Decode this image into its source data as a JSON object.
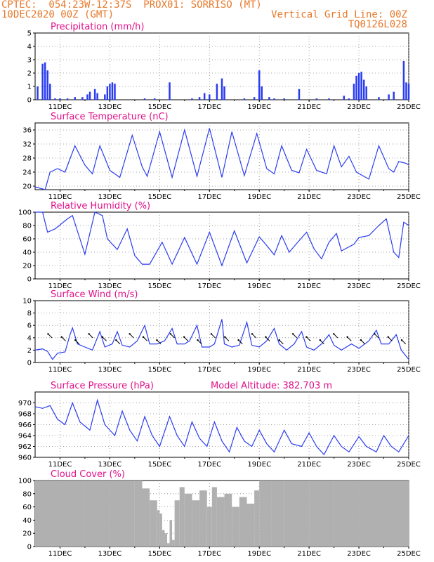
{
  "header": {
    "line1_left": "CPTEC:  054:23W-12:37S  PROX01: SORRISO (MT)",
    "line2_left": "10DEC2020 00Z (GMT)",
    "line2_right": "Vertical Grid Line: 00Z",
    "line3_right": "TQ0126L028"
  },
  "colors": {
    "header": "#e8782a",
    "panel_title": "#e0108a",
    "series": "#2a3cf0",
    "cloud": "#b0b0b0"
  },
  "chart_data": [
    {
      "type": "bar",
      "title": "Precipitation (mm/h)",
      "ylim": [
        0,
        5
      ],
      "yticks": [
        0,
        1,
        2,
        3,
        4,
        5
      ],
      "x_ticks": [
        "11DEC",
        "13DEC",
        "15DEC",
        "17DEC",
        "19DEC",
        "21DEC",
        "23DEC",
        "25DEC"
      ],
      "x_start": "10DEC",
      "x_end": "25DEC",
      "points": [
        [
          10.1,
          1.0
        ],
        [
          10.3,
          2.7
        ],
        [
          10.4,
          2.8
        ],
        [
          10.5,
          2.2
        ],
        [
          10.6,
          1.2
        ],
        [
          10.8,
          0.1
        ],
        [
          11.0,
          0.1
        ],
        [
          11.3,
          0.1
        ],
        [
          11.6,
          0.2
        ],
        [
          11.9,
          0.2
        ],
        [
          12.1,
          0.4
        ],
        [
          12.2,
          0.6
        ],
        [
          12.4,
          0.8
        ],
        [
          12.5,
          0.5
        ],
        [
          12.8,
          0.4
        ],
        [
          12.9,
          1.0
        ],
        [
          13.0,
          1.2
        ],
        [
          13.1,
          1.3
        ],
        [
          13.2,
          1.2
        ],
        [
          14.4,
          0.1
        ],
        [
          14.8,
          0.1
        ],
        [
          15.4,
          1.3
        ],
        [
          16.3,
          0.1
        ],
        [
          16.6,
          0.2
        ],
        [
          16.8,
          0.5
        ],
        [
          17.0,
          0.4
        ],
        [
          17.3,
          1.2
        ],
        [
          17.5,
          1.6
        ],
        [
          17.6,
          1.0
        ],
        [
          18.4,
          0.1
        ],
        [
          18.8,
          0.2
        ],
        [
          19.0,
          2.2
        ],
        [
          19.1,
          1.0
        ],
        [
          19.4,
          0.2
        ],
        [
          19.6,
          0.1
        ],
        [
          20.0,
          0.1
        ],
        [
          20.6,
          0.8
        ],
        [
          21.3,
          0.1
        ],
        [
          21.8,
          0.1
        ],
        [
          22.4,
          0.3
        ],
        [
          22.6,
          0.1
        ],
        [
          22.8,
          1.2
        ],
        [
          22.9,
          1.8
        ],
        [
          23.0,
          2.0
        ],
        [
          23.1,
          2.1
        ],
        [
          23.2,
          1.5
        ],
        [
          23.3,
          1.0
        ],
        [
          23.8,
          0.2
        ],
        [
          24.2,
          0.4
        ],
        [
          24.4,
          0.6
        ],
        [
          24.8,
          2.9
        ],
        [
          24.9,
          1.3
        ],
        [
          25.0,
          1.2
        ]
      ]
    },
    {
      "type": "line",
      "title": "Surface Temperature (nC)",
      "ylim": [
        19,
        38
      ],
      "yticks": [
        20,
        24,
        28,
        32,
        36
      ],
      "x_ticks": [
        "11DEC",
        "13DEC",
        "15DEC",
        "17DEC",
        "19DEC",
        "21DEC",
        "23DEC",
        "25DEC"
      ],
      "x_start": "10DEC",
      "x_end": "25DEC",
      "points": [
        [
          10.0,
          19.8
        ],
        [
          10.4,
          19.0
        ],
        [
          10.6,
          24.0
        ],
        [
          10.9,
          25.0
        ],
        [
          11.2,
          24.0
        ],
        [
          11.6,
          31.5
        ],
        [
          12.0,
          26.0
        ],
        [
          12.3,
          23.5
        ],
        [
          12.6,
          31.5
        ],
        [
          13.0,
          24.5
        ],
        [
          13.4,
          22.5
        ],
        [
          13.9,
          34.5
        ],
        [
          14.3,
          25.5
        ],
        [
          14.5,
          22.8
        ],
        [
          15.0,
          35.5
        ],
        [
          15.5,
          22.5
        ],
        [
          16.0,
          36.0
        ],
        [
          16.5,
          22.8
        ],
        [
          17.0,
          36.5
        ],
        [
          17.5,
          22.5
        ],
        [
          17.9,
          35.5
        ],
        [
          18.4,
          23.0
        ],
        [
          18.9,
          35.0
        ],
        [
          19.3,
          25.0
        ],
        [
          19.6,
          23.5
        ],
        [
          19.9,
          31.5
        ],
        [
          20.3,
          24.5
        ],
        [
          20.6,
          23.8
        ],
        [
          20.9,
          30.5
        ],
        [
          21.3,
          24.5
        ],
        [
          21.7,
          23.5
        ],
        [
          22.0,
          31.5
        ],
        [
          22.3,
          25.5
        ],
        [
          22.6,
          28.5
        ],
        [
          22.9,
          24.0
        ],
        [
          23.4,
          22.0
        ],
        [
          23.8,
          31.5
        ],
        [
          24.2,
          25.0
        ],
        [
          24.4,
          24.0
        ],
        [
          24.6,
          27.0
        ],
        [
          24.9,
          26.5
        ],
        [
          25.0,
          26.0
        ]
      ]
    },
    {
      "type": "line",
      "title": "Relative Humidity (%)",
      "ylim": [
        0,
        100
      ],
      "yticks": [
        0,
        20,
        40,
        60,
        80,
        100
      ],
      "x_ticks": [
        "11DEC",
        "13DEC",
        "15DEC",
        "17DEC",
        "19DEC",
        "21DEC",
        "23DEC",
        "25DEC"
      ],
      "x_start": "10DEC",
      "x_end": "25DEC",
      "points": [
        [
          10.0,
          100
        ],
        [
          10.3,
          100
        ],
        [
          10.5,
          70
        ],
        [
          10.8,
          75
        ],
        [
          11.3,
          90
        ],
        [
          11.5,
          95
        ],
        [
          11.8,
          60
        ],
        [
          12.0,
          37
        ],
        [
          12.4,
          100
        ],
        [
          12.7,
          95
        ],
        [
          12.9,
          60
        ],
        [
          13.3,
          44
        ],
        [
          13.7,
          75
        ],
        [
          14.0,
          35
        ],
        [
          14.3,
          22
        ],
        [
          14.6,
          22
        ],
        [
          15.1,
          55
        ],
        [
          15.5,
          22
        ],
        [
          16.0,
          62
        ],
        [
          16.5,
          22
        ],
        [
          17.0,
          70
        ],
        [
          17.5,
          20
        ],
        [
          18.0,
          72
        ],
        [
          18.5,
          24
        ],
        [
          19.0,
          63
        ],
        [
          19.3,
          50
        ],
        [
          19.6,
          36
        ],
        [
          19.9,
          65
        ],
        [
          20.2,
          40
        ],
        [
          20.5,
          53
        ],
        [
          20.9,
          70
        ],
        [
          21.2,
          45
        ],
        [
          21.5,
          30
        ],
        [
          21.8,
          55
        ],
        [
          22.1,
          68
        ],
        [
          22.3,
          42
        ],
        [
          22.8,
          52
        ],
        [
          23.0,
          62
        ],
        [
          23.4,
          65
        ],
        [
          23.8,
          80
        ],
        [
          24.1,
          90
        ],
        [
          24.4,
          40
        ],
        [
          24.6,
          32
        ],
        [
          24.8,
          85
        ],
        [
          25.0,
          80
        ]
      ]
    },
    {
      "type": "line",
      "title": "Surface Wind (m/s)",
      "ylim": [
        0,
        10
      ],
      "yticks": [
        0,
        2,
        4,
        6,
        8,
        10
      ],
      "x_ticks": [
        "11DEC",
        "13DEC",
        "15DEC",
        "17DEC",
        "19DEC",
        "21DEC",
        "23DEC",
        "25DEC"
      ],
      "x_start": "10DEC",
      "x_end": "25DEC",
      "points": [
        [
          10.0,
          2.0
        ],
        [
          10.3,
          2.2
        ],
        [
          10.5,
          1.8
        ],
        [
          10.7,
          0.5
        ],
        [
          10.9,
          1.5
        ],
        [
          11.2,
          1.7
        ],
        [
          11.4,
          4.5
        ],
        [
          11.5,
          5.6
        ],
        [
          11.7,
          3.0
        ],
        [
          12.0,
          2.5
        ],
        [
          12.3,
          2.0
        ],
        [
          12.6,
          5.0
        ],
        [
          12.8,
          2.5
        ],
        [
          13.1,
          3.0
        ],
        [
          13.3,
          5.0
        ],
        [
          13.5,
          2.8
        ],
        [
          13.8,
          2.5
        ],
        [
          14.1,
          3.5
        ],
        [
          14.4,
          6.0
        ],
        [
          14.6,
          3.0
        ],
        [
          14.9,
          3.0
        ],
        [
          15.2,
          3.5
        ],
        [
          15.5,
          5.5
        ],
        [
          15.7,
          3.0
        ],
        [
          16.0,
          3.0
        ],
        [
          16.2,
          3.5
        ],
        [
          16.5,
          6.0
        ],
        [
          16.7,
          2.5
        ],
        [
          17.0,
          2.5
        ],
        [
          17.2,
          3.0
        ],
        [
          17.5,
          7.0
        ],
        [
          17.6,
          3.0
        ],
        [
          17.9,
          2.5
        ],
        [
          18.2,
          2.8
        ],
        [
          18.5,
          6.5
        ],
        [
          18.7,
          2.8
        ],
        [
          19.0,
          2.5
        ],
        [
          19.3,
          3.5
        ],
        [
          19.6,
          5.5
        ],
        [
          19.8,
          3.0
        ],
        [
          20.1,
          2.0
        ],
        [
          20.4,
          3.0
        ],
        [
          20.7,
          5.0
        ],
        [
          20.9,
          2.5
        ],
        [
          21.2,
          2.0
        ],
        [
          21.5,
          3.0
        ],
        [
          21.8,
          4.5
        ],
        [
          22.0,
          2.8
        ],
        [
          22.3,
          2.0
        ],
        [
          22.7,
          3.0
        ],
        [
          23.0,
          2.3
        ],
        [
          23.4,
          3.5
        ],
        [
          23.7,
          5.2
        ],
        [
          23.9,
          3.0
        ],
        [
          24.2,
          3.0
        ],
        [
          24.5,
          4.5
        ],
        [
          24.7,
          2.0
        ],
        [
          25.0,
          0.5
        ]
      ],
      "wind_directions_deg": [
        225,
        225,
        225,
        225,
        225,
        225,
        225,
        225,
        225,
        225,
        225,
        225,
        225,
        225,
        225,
        225,
        225,
        225,
        225,
        225,
        225,
        225,
        225,
        225,
        225,
        225,
        225
      ]
    },
    {
      "type": "line",
      "title": "Surface Pressure (hPa)",
      "subtitle": "Model Altitude: 382.703 m",
      "ylim": [
        960,
        972
      ],
      "yticks": [
        960,
        962,
        964,
        966,
        968,
        970
      ],
      "x_ticks": [
        "11DEC",
        "13DEC",
        "15DEC",
        "17DEC",
        "19DEC",
        "21DEC",
        "23DEC",
        "25DEC"
      ],
      "x_start": "10DEC",
      "x_end": "25DEC",
      "points": [
        [
          10.0,
          969.3
        ],
        [
          10.3,
          969.0
        ],
        [
          10.6,
          969.5
        ],
        [
          10.9,
          967.0
        ],
        [
          11.2,
          966.0
        ],
        [
          11.5,
          970.0
        ],
        [
          11.8,
          966.5
        ],
        [
          12.2,
          965.0
        ],
        [
          12.5,
          970.5
        ],
        [
          12.8,
          966.0
        ],
        [
          13.2,
          964.0
        ],
        [
          13.5,
          968.5
        ],
        [
          13.8,
          965.0
        ],
        [
          14.1,
          963.0
        ],
        [
          14.4,
          967.5
        ],
        [
          14.7,
          964.0
        ],
        [
          15.0,
          962.0
        ],
        [
          15.4,
          967.5
        ],
        [
          15.7,
          964.0
        ],
        [
          16.0,
          962.0
        ],
        [
          16.3,
          966.5
        ],
        [
          16.6,
          963.5
        ],
        [
          16.9,
          962.0
        ],
        [
          17.2,
          966.5
        ],
        [
          17.5,
          963.0
        ],
        [
          17.8,
          961.0
        ],
        [
          18.1,
          965.5
        ],
        [
          18.4,
          963.0
        ],
        [
          18.7,
          962.0
        ],
        [
          19.0,
          965.0
        ],
        [
          19.3,
          962.5
        ],
        [
          19.6,
          961.0
        ],
        [
          20.0,
          965.0
        ],
        [
          20.3,
          962.5
        ],
        [
          20.7,
          962.0
        ],
        [
          21.0,
          964.5
        ],
        [
          21.3,
          962.0
        ],
        [
          21.6,
          960.5
        ],
        [
          22.0,
          964.0
        ],
        [
          22.3,
          962.0
        ],
        [
          22.6,
          961.0
        ],
        [
          23.0,
          963.8
        ],
        [
          23.3,
          962.0
        ],
        [
          23.7,
          961.0
        ],
        [
          24.0,
          964.0
        ],
        [
          24.3,
          962.0
        ],
        [
          24.6,
          961.0
        ],
        [
          25.0,
          964.0
        ]
      ]
    },
    {
      "type": "bar",
      "title": "Cloud Cover (%)",
      "ylim": [
        0,
        100
      ],
      "yticks": [
        0,
        20,
        40,
        60,
        80,
        100
      ],
      "x_ticks": [
        "11DEC",
        "13DEC",
        "15DEC",
        "17DEC",
        "19DEC",
        "21DEC",
        "23DEC",
        "25DEC"
      ],
      "x_start": "10DEC",
      "x_end": "25DEC",
      "points": [
        [
          10.0,
          100
        ],
        [
          11.0,
          100
        ],
        [
          12.0,
          100
        ],
        [
          13.0,
          100
        ],
        [
          14.0,
          100
        ],
        [
          14.3,
          88
        ],
        [
          14.6,
          70
        ],
        [
          14.9,
          55
        ],
        [
          15.0,
          50
        ],
        [
          15.1,
          25
        ],
        [
          15.2,
          20
        ],
        [
          15.3,
          5
        ],
        [
          15.4,
          40
        ],
        [
          15.5,
          10
        ],
        [
          15.6,
          70
        ],
        [
          15.8,
          90
        ],
        [
          16.0,
          80
        ],
        [
          16.3,
          70
        ],
        [
          16.6,
          85
        ],
        [
          16.9,
          60
        ],
        [
          17.1,
          90
        ],
        [
          17.3,
          75
        ],
        [
          17.6,
          80
        ],
        [
          17.9,
          60
        ],
        [
          18.2,
          75
        ],
        [
          18.5,
          65
        ],
        [
          18.8,
          85
        ],
        [
          19.0,
          100
        ],
        [
          19.5,
          100
        ],
        [
          20.0,
          100
        ],
        [
          21.0,
          100
        ],
        [
          22.0,
          100
        ],
        [
          23.0,
          100
        ],
        [
          24.0,
          100
        ],
        [
          25.0,
          100
        ]
      ]
    }
  ]
}
